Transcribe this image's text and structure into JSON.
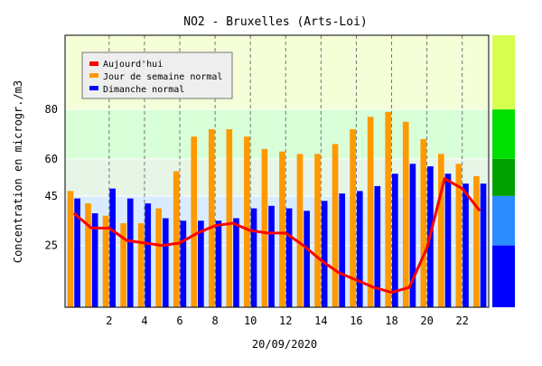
{
  "chart_data": {
    "type": "bar",
    "title": "NO2 - Bruxelles (Arts-Loi)",
    "xlabel": "20/09/2020",
    "ylabel": "Concentration en microgr./m3",
    "x_tick_labels": [
      "2",
      "4",
      "6",
      "8",
      "10",
      "12",
      "14",
      "16",
      "18",
      "20",
      "22"
    ],
    "x_tick_values": [
      2,
      4,
      6,
      8,
      10,
      12,
      14,
      16,
      18,
      20,
      22
    ],
    "y_tick_labels": [
      "25",
      "45",
      "60",
      "80"
    ],
    "y_tick_values": [
      25,
      45,
      60,
      80
    ],
    "ylim": [
      0,
      110
    ],
    "xlim": [
      -0.5,
      23.5
    ],
    "hours": [
      0,
      1,
      2,
      3,
      4,
      5,
      6,
      7,
      8,
      9,
      10,
      11,
      12,
      13,
      14,
      15,
      16,
      17,
      18,
      19,
      20,
      21,
      22,
      23
    ],
    "grid": true,
    "legend_position": "top-left",
    "background_bands": [
      {
        "from": 0,
        "to": 45,
        "color": "#d9ecff"
      },
      {
        "from": 45,
        "to": 60,
        "color": "#e6f5e6"
      },
      {
        "from": 60,
        "to": 80,
        "color": "#d8ffd8"
      },
      {
        "from": 80,
        "to": 110,
        "color": "#f4ffd8"
      }
    ],
    "color_scale": [
      {
        "from": 0,
        "to": 25,
        "color": "#0000ff"
      },
      {
        "from": 25,
        "to": 45,
        "color": "#2b8cff"
      },
      {
        "from": 45,
        "to": 60,
        "color": "#00a000"
      },
      {
        "from": 60,
        "to": 80,
        "color": "#00e000"
      },
      {
        "from": 80,
        "to": 110,
        "color": "#d6ff50"
      }
    ],
    "series": [
      {
        "name": "Aujourd'hui",
        "kind": "line",
        "color": "#ff0000",
        "values": [
          38,
          32,
          32,
          27,
          26,
          25,
          26,
          30,
          33,
          34,
          31,
          30,
          30,
          25,
          19,
          14,
          11,
          8,
          6,
          8,
          24,
          52,
          48,
          39
        ]
      },
      {
        "name": "Jour de semaine normal",
        "kind": "bar",
        "color": "#ff9900",
        "values": [
          47,
          42,
          37,
          34,
          34,
          40,
          55,
          69,
          72,
          72,
          69,
          64,
          63,
          62,
          62,
          66,
          72,
          77,
          79,
          75,
          68,
          62,
          58,
          53
        ]
      },
      {
        "name": "Dimanche normal",
        "kind": "bar",
        "color": "#0000ff",
        "values": [
          44,
          38,
          48,
          44,
          42,
          36,
          35,
          35,
          35,
          36,
          40,
          41,
          40,
          39,
          43,
          46,
          47,
          49,
          54,
          58,
          57,
          54,
          50,
          50
        ]
      }
    ]
  }
}
